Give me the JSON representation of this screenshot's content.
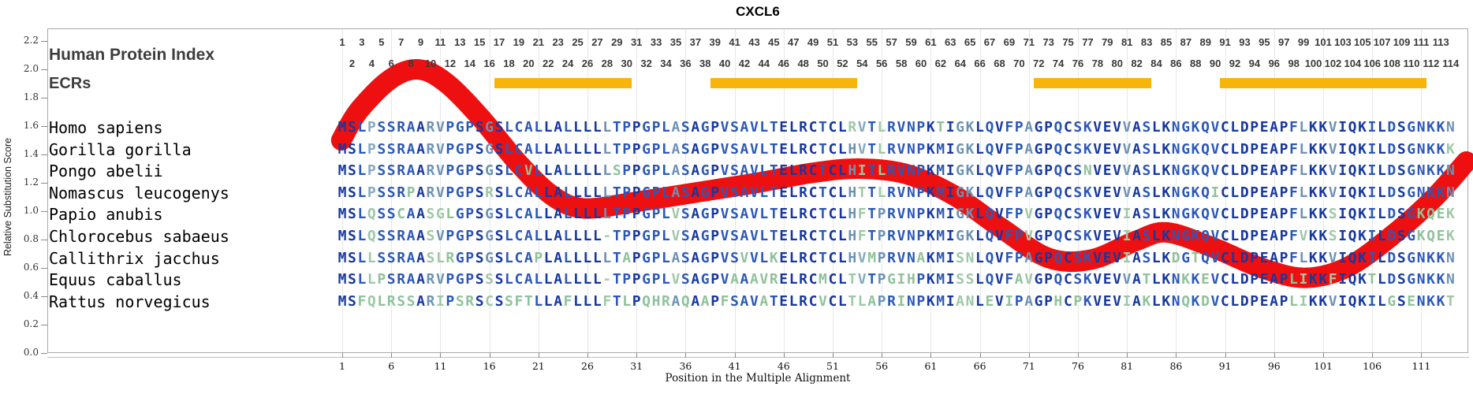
{
  "title": "CXCL6",
  "header": {
    "human_protein_index_label": "Human Protein Index",
    "ecrs_label": "ECRs"
  },
  "x_axis": {
    "label": "Position in the Multiple Alignment",
    "ticks": [
      1,
      6,
      11,
      16,
      21,
      26,
      31,
      36,
      41,
      46,
      51,
      56,
      61,
      66,
      71,
      76,
      81,
      86,
      91,
      96,
      101,
      106,
      111
    ]
  },
  "y_axis": {
    "label": "Relative Substitution Score",
    "ticks": [
      2.2,
      2.0,
      1.8,
      1.6,
      1.4,
      1.2,
      1.0,
      0.8,
      0.6,
      0.4,
      0.2,
      0.0
    ]
  },
  "index": {
    "first": 1,
    "last": 114
  },
  "ecr_regions": [
    {
      "start": 17,
      "end": 30
    },
    {
      "start": 39,
      "end": 53
    },
    {
      "start": 72,
      "end": 83
    },
    {
      "start": 91,
      "end": 111
    }
  ],
  "alignment": {
    "species": [
      {
        "name": "Homo sapiens",
        "sequence": "MSLPSSRAARVPGPSGSLCALLALLLLLTPPGPLASAGPVSAVLTELRCTCLRVTLRVNPKTIGKLQVFPAGPQCSKVEVVASLKNGKQVCLDPEAPFLKKVIQKILDSGNKKN"
      },
      {
        "name": "Gorilla gorilla",
        "sequence": "MSLPSSRAARVPGPSGSLCALLALLLLLTPPGPLASAGPVSAVLTELRCTCLHVTLRVNPKMIGKLQVFPAGPQCSKVEVVASLKNGKQVCLDPEAPFLKKVIQKILDSGNKKK"
      },
      {
        "name": "Pongo abelii",
        "sequence": "MSLPSSRAARVPGPSGSLCVLLALLLLLSPPGPLASAGPVSAVLTELRCTCLHITLRVNPKMIGKLQVFPAGPQCSNVEVVASLKNGKQVCLDPEAPFLKKVIQKILDSGNKKN"
      },
      {
        "name": "Nomascus leucogenys",
        "sequence": "MSLPSSRPARVPGPSRSLCALLALLLLLTPPGPLASAGPVSAVLTELRCTCLHTTLRVNPKMIGKLQVFPAGPQCSKVEVVASLKNGKQICLDPEAPFLKKVIQKILDSGNKKN"
      },
      {
        "name": "Papio anubis",
        "sequence": "MSLQSSCAASGLGPSGSLCALLALLLLLTPPGPLVSAGPVSAVLTELRCTCLHFTPRVNPKMIGKLQVFPVGPQCSKVEVIASLKNGKQVCLDPEAPFLKKSIQKILDSGKQEK"
      },
      {
        "name": "Chlorocebus sabaeus",
        "sequence": "MSLQSSRAASVPGPSGSLCALLALLLL-TPPGPLVSAGPVSAVLTELRCTCLHFTPRVNPKMIGKLQVFPVGPQCSKVEVIASLKNGKQVCLDPEAPFVKKSIQKILDSGKQEK"
      },
      {
        "name": "Callithrix jacchus",
        "sequence": "MSLLSSRAASLRGPSGSLCAPLALLLLLTAPGPLASAGPVSVVLKELRCTCLHVMPRVNAKMISNLQVFPAGPQCSKVEVIASLKDGTQVCLDPEAPFLKKVIQKILDSGNKKN"
      },
      {
        "name": "Equus caballus",
        "sequence": "MSLLPSRAARVPGPSSSLCALLALLLL-TPPGPLVSAGPVAAAVRELRCMCLTVTPGIHPKMISSLQVFAVGPQCSKVEVVATLKNKKEVCLDPEAPLIKKFIQKTLDSGNKKN"
      },
      {
        "name": "Rattus norvegicus",
        "sequence": "MSFQLRSSARIPSRSCSSFTLLAFLLLFTLPQHRAQAAPFSAVATELRCVCLTLAPRINPKMIANLEVIPAGPHCPKVEVIAKLKNQKDVCLDPEAPLIKKVIQKILGSENKKT"
      }
    ]
  },
  "colors": {
    "curve": "#EE1010",
    "ecr_bar": "#F7B50A",
    "index_numbers": "#3A3A3A",
    "residue": {
      "full": "#16389F",
      "high": "#2B58B8",
      "mid": "#6C92B4",
      "low": "#86A9BE",
      "mm_high": "#8FC29A",
      "mm_mid": "#9DC8A6",
      "gap": "#A9CCAA"
    }
  },
  "chart_data": {
    "type": "line",
    "title": "CXCL6",
    "xlabel": "Position in the Multiple Alignment",
    "ylabel": "Relative Substitution Score",
    "xlim": [
      1,
      114
    ],
    "ylim": [
      0.0,
      2.2
    ],
    "x_ticks": [
      1,
      6,
      11,
      16,
      21,
      26,
      31,
      36,
      41,
      46,
      51,
      56,
      61,
      66,
      71,
      76,
      81,
      86,
      91,
      96,
      101,
      106,
      111
    ],
    "y_ticks": [
      0.0,
      0.2,
      0.4,
      0.6,
      0.8,
      1.0,
      1.2,
      1.4,
      1.6,
      1.8,
      2.0,
      2.2
    ],
    "grid": "vertical-faint",
    "legend": "none",
    "ecr_regions_positions": [
      [
        17,
        30
      ],
      [
        39,
        53
      ],
      [
        72,
        83
      ],
      [
        91,
        111
      ]
    ],
    "series": [
      {
        "name": "relative-substitution-score-curve",
        "x": [
          0.9,
          2.7,
          5.9,
          8.7,
          11.5,
          15.1,
          18.8,
          22.4,
          25.6,
          30.4,
          36.9,
          43.3,
          48.9,
          53.7,
          58.6,
          63.4,
          68.2,
          73.0,
          77.4,
          81.9,
          85.1,
          89.9,
          94.7,
          99.2,
          103.6,
          108.4,
          112.4,
          115.6
        ],
        "y": [
          1.5,
          1.71,
          1.93,
          2.0,
          1.91,
          1.66,
          1.35,
          1.11,
          1.02,
          1.06,
          1.13,
          1.2,
          1.27,
          1.3,
          1.26,
          1.11,
          0.88,
          0.67,
          0.66,
          0.79,
          0.85,
          0.74,
          0.6,
          0.53,
          0.61,
          0.85,
          1.1,
          1.35
        ]
      }
    ]
  }
}
